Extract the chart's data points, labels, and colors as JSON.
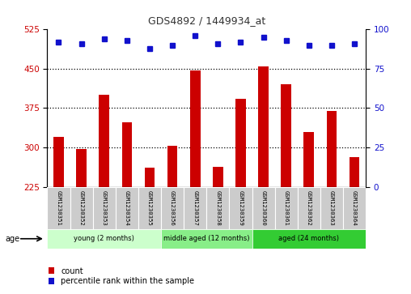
{
  "title": "GDS4892 / 1449934_at",
  "samples": [
    "GSM1230351",
    "GSM1230352",
    "GSM1230353",
    "GSM1230354",
    "GSM1230355",
    "GSM1230356",
    "GSM1230357",
    "GSM1230358",
    "GSM1230359",
    "GSM1230360",
    "GSM1230361",
    "GSM1230362",
    "GSM1230363",
    "GSM1230364"
  ],
  "counts": [
    320,
    297,
    400,
    348,
    262,
    303,
    447,
    263,
    392,
    455,
    420,
    330,
    370,
    282
  ],
  "percentile_ranks": [
    92,
    91,
    94,
    93,
    88,
    90,
    96,
    91,
    92,
    95,
    93,
    90,
    90,
    91
  ],
  "ylim_left": [
    225,
    525
  ],
  "ylim_right": [
    0,
    100
  ],
  "yticks_left": [
    225,
    300,
    375,
    450,
    525
  ],
  "yticks_right": [
    0,
    25,
    50,
    75,
    100
  ],
  "bar_color": "#cc0000",
  "dot_color": "#1111cc",
  "bar_width": 0.45,
  "groups": [
    {
      "label": "young (2 months)",
      "start": 0,
      "end": 4,
      "color": "#ccffcc"
    },
    {
      "label": "middle aged (12 months)",
      "start": 5,
      "end": 8,
      "color": "#88ee88"
    },
    {
      "label": "aged (24 months)",
      "start": 9,
      "end": 13,
      "color": "#33cc33"
    }
  ],
  "age_label": "age",
  "legend_count_label": "count",
  "legend_pct_label": "percentile rank within the sample",
  "bg_color": "#ffffff",
  "plot_bg": "#ffffff",
  "grid_color": "#000000",
  "tick_label_color_left": "#cc0000",
  "tick_label_color_right": "#1111cc",
  "title_color": "#333333",
  "sample_box_color": "#cccccc",
  "grid_lines": [
    300,
    375,
    450
  ]
}
